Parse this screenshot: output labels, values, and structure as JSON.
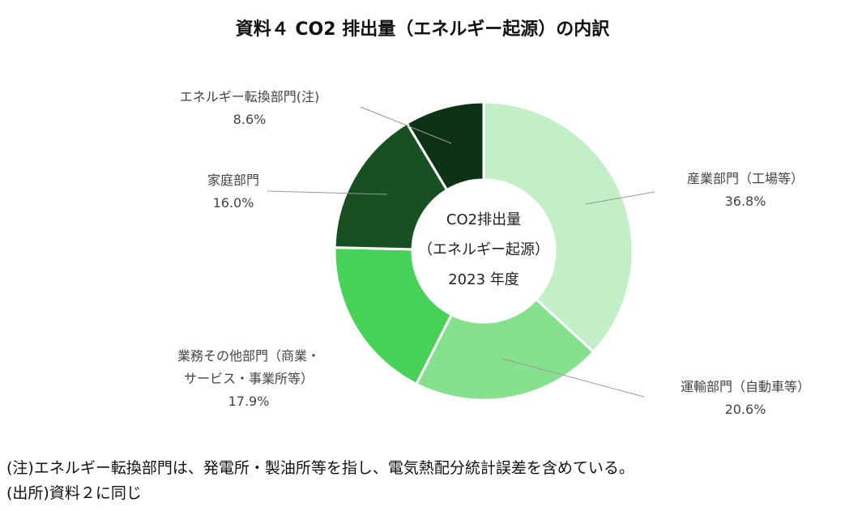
{
  "chart_data": {
    "type": "donut",
    "title": "資料４ CO2 排出量（エネルギー起源）の内訳",
    "center_text": [
      "CO2排出量",
      "（エネルギー起源）",
      "2023 年度"
    ],
    "categories": [
      "産業部門（工場等）",
      "運輸部門（自動車等）",
      "業務その他部門（商業・サービス・事業所等）",
      "家庭部門",
      "エネルギー転換部門(注)"
    ],
    "values": [
      36.8,
      20.6,
      17.9,
      16.0,
      8.6
    ],
    "value_labels": [
      "36.8%",
      "20.6%",
      "17.9%",
      "16.0%",
      "8.6%"
    ],
    "colors": [
      "#c3efc7",
      "#86e18f",
      "#47d357",
      "#185021",
      "#0e3215"
    ],
    "notes": [
      "(注)エネルギー転換部門は、発電所・製油所等を指し、電気熱配分統計誤差を含めている。",
      "(出所)資料２に同じ"
    ]
  }
}
